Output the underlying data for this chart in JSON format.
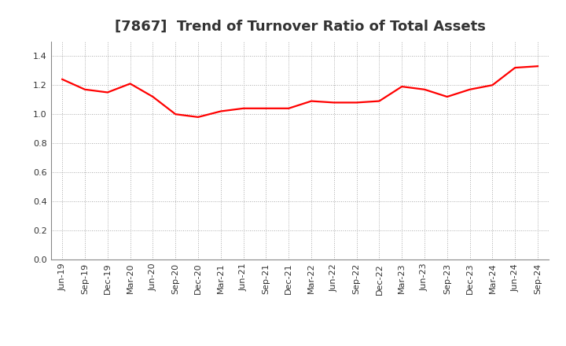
{
  "title": "[7867]  Trend of Turnover Ratio of Total Assets",
  "labels": [
    "Jun-19",
    "Sep-19",
    "Dec-19",
    "Mar-20",
    "Jun-20",
    "Sep-20",
    "Dec-20",
    "Mar-21",
    "Jun-21",
    "Sep-21",
    "Dec-21",
    "Mar-22",
    "Jun-22",
    "Sep-22",
    "Dec-22",
    "Mar-23",
    "Jun-23",
    "Sep-23",
    "Dec-23",
    "Mar-24",
    "Jun-24",
    "Sep-24"
  ],
  "values": [
    1.24,
    1.17,
    1.15,
    1.21,
    1.12,
    1.0,
    0.98,
    1.02,
    1.04,
    1.04,
    1.04,
    1.09,
    1.08,
    1.08,
    1.09,
    1.19,
    1.17,
    1.12,
    1.17,
    1.2,
    1.32,
    1.33
  ],
  "line_color": "#FF0000",
  "line_width": 1.6,
  "ylim": [
    0.0,
    1.5
  ],
  "yticks": [
    0.0,
    0.2,
    0.4,
    0.6,
    0.8,
    1.0,
    1.2,
    1.4
  ],
  "grid_color": "#aaaaaa",
  "background_color": "#ffffff",
  "plot_bg_color": "#ffffff",
  "title_fontsize": 13,
  "tick_fontsize": 8,
  "title_color": "#333333"
}
